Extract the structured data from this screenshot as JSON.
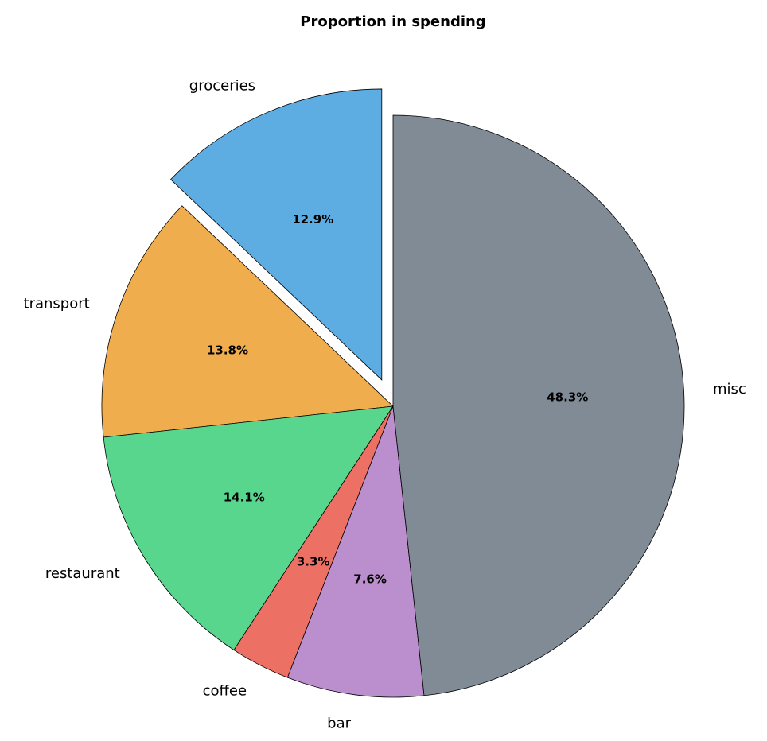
{
  "chart_data": {
    "type": "pie",
    "title": "Proportion in spending",
    "categories": [
      "groceries",
      "transport",
      "restaurant",
      "coffee",
      "bar",
      "misc"
    ],
    "values": [
      12.9,
      13.8,
      14.1,
      3.3,
      7.6,
      48.3
    ],
    "value_labels": [
      "12.9%",
      "13.8%",
      "14.1%",
      "3.3%",
      "7.6%",
      "48.3%"
    ],
    "colors": [
      "#5dade2",
      "#f0ad4e",
      "#58d68d",
      "#ec7063",
      "#bb8fce",
      "#808b96"
    ],
    "exploded": [
      "groceries"
    ],
    "start_angle_deg": 90,
    "direction": "counterclockwise"
  }
}
